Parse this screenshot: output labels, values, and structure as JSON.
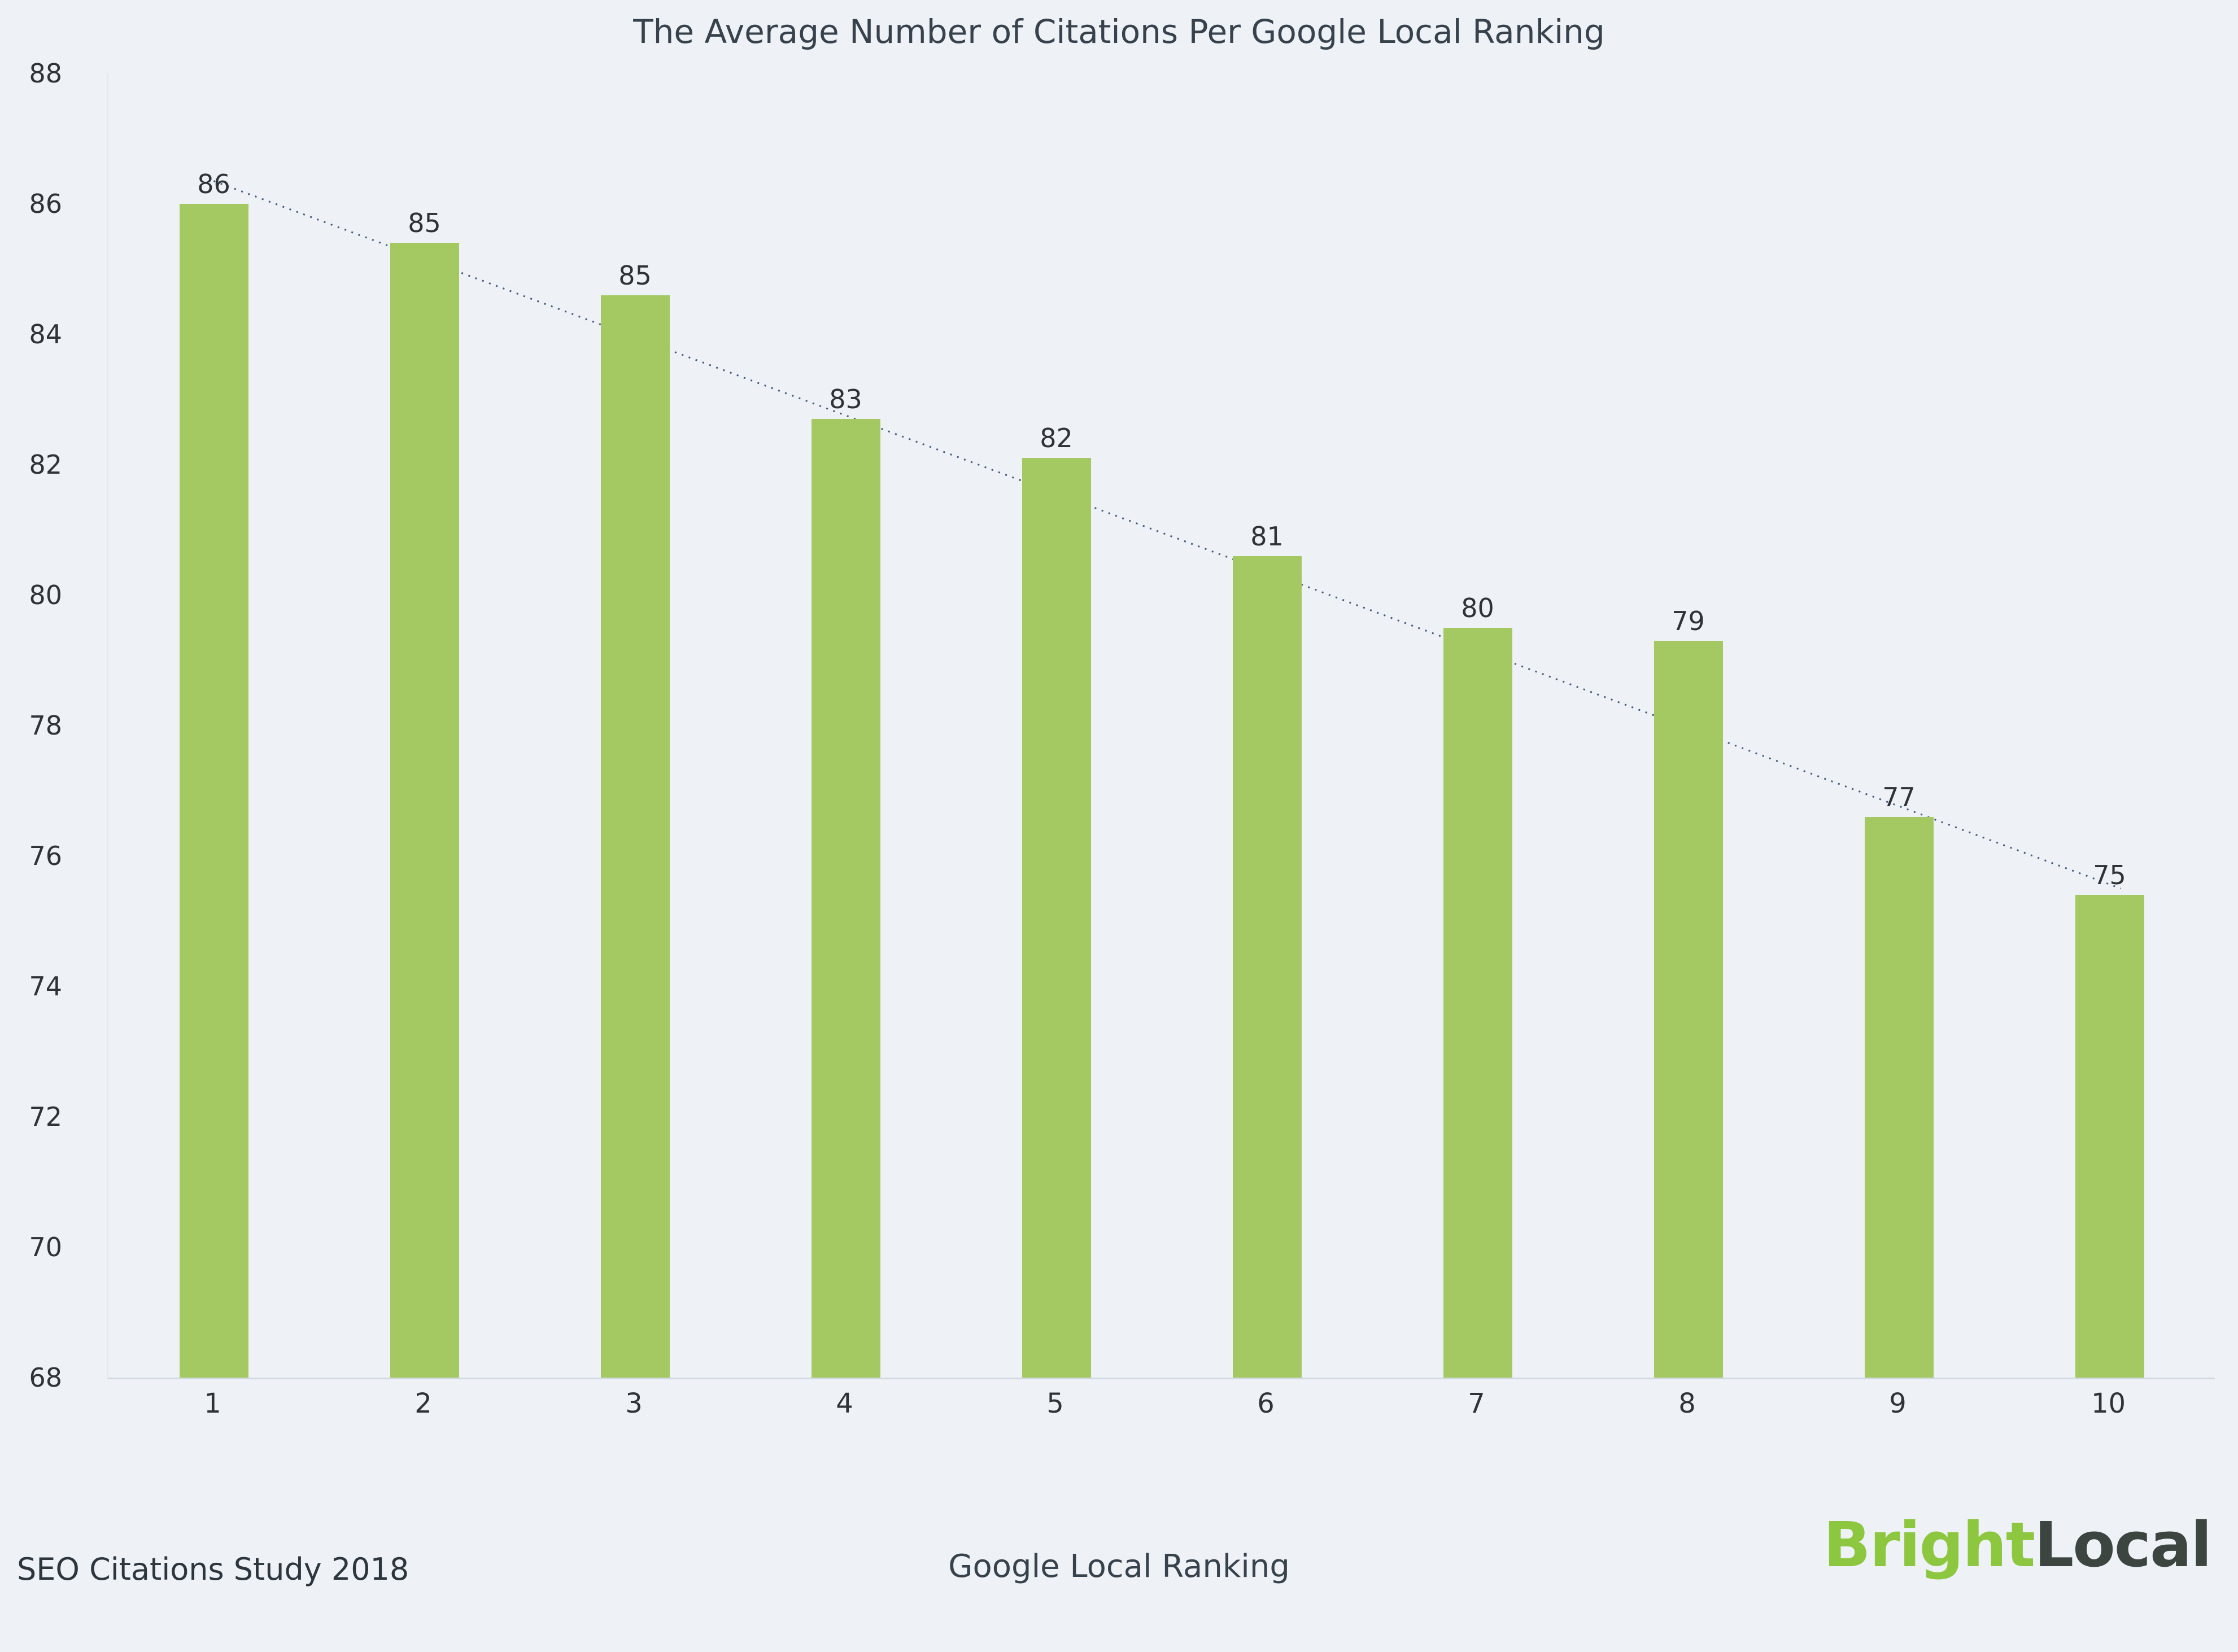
{
  "chart_data": {
    "type": "bar",
    "title": "The Average Number of Citations Per Google Local Ranking",
    "categories": [
      "1",
      "2",
      "3",
      "4",
      "5",
      "6",
      "7",
      "8",
      "9",
      "10"
    ],
    "values": [
      86,
      85,
      85,
      83,
      82,
      81,
      80,
      79,
      77,
      75
    ],
    "heights": [
      86.0,
      85.4,
      84.6,
      82.7,
      82.1,
      80.6,
      79.5,
      79.3,
      76.6,
      75.4
    ],
    "xlabel": "Google Local Ranking",
    "ylabel": "",
    "ylim": [
      68,
      88
    ],
    "yticks": [
      68,
      70,
      72,
      74,
      76,
      78,
      80,
      82,
      84,
      86,
      88
    ],
    "bar_color": "#a4c963",
    "grid": false,
    "legend": false,
    "trendline": {
      "start": 86.35,
      "end": 75.5,
      "color": "#43587a",
      "style": "dotted"
    }
  },
  "footer": {
    "source": "SEO Citations Study 2018",
    "logo": {
      "part1": "Bright",
      "part2": "Local"
    }
  }
}
